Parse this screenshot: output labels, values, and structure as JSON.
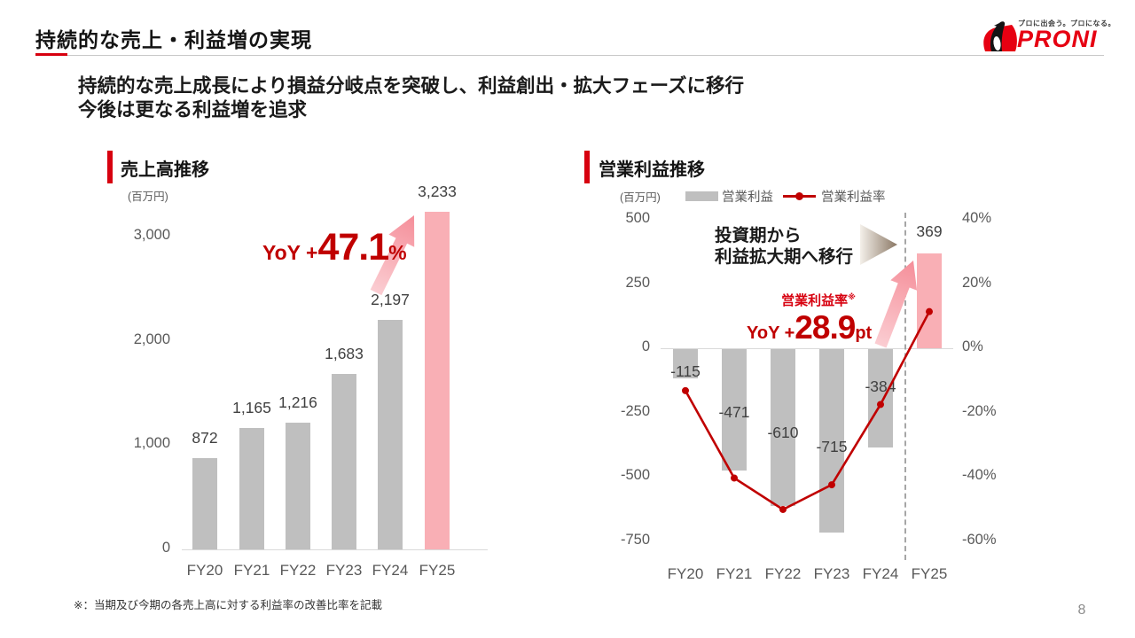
{
  "header": {
    "title": "持続的な売上・利益増の実現",
    "logo": {
      "tagline": "プロに出会う。プロになる。",
      "brand": "PRONI"
    }
  },
  "subtitle": {
    "line1": "持続的な売上成長により損益分岐点を突破し、利益創出・拡大フェーズに移行",
    "line2": "今後は更なる利益増を追求"
  },
  "colors": {
    "accent_red": "#d7000f",
    "dark_red": "#c00000",
    "logo_red": "#e60012",
    "bar_gray": "#bfbfbf",
    "bar_pink": "#f9afb5",
    "axis_line": "#d9d9d9",
    "dashed_line": "#a6a6a6",
    "tick_text": "#595959",
    "value_text": "#404040"
  },
  "chart_data": [
    {
      "id": "revenue",
      "type": "bar",
      "title": "売上高推移",
      "unit_label": "(百万円)",
      "categories": [
        "FY20",
        "FY21",
        "FY22",
        "FY23",
        "FY24",
        "FY25"
      ],
      "values": [
        872,
        1165,
        1216,
        1683,
        2197,
        3233
      ],
      "value_labels": [
        "872",
        "1,165",
        "1,216",
        "1,683",
        "2,197",
        "3,233"
      ],
      "ylim": [
        0,
        3400
      ],
      "yticks": [
        {
          "value": 0,
          "label": "0"
        },
        {
          "value": 1000,
          "label": "1,000"
        },
        {
          "value": 2000,
          "label": "2,000"
        },
        {
          "value": 3000,
          "label": "3,000"
        }
      ],
      "grid": false,
      "highlight_index": 5,
      "annotation": {
        "prefix": "YoY +",
        "value": "47.1",
        "suffix": "%"
      }
    },
    {
      "id": "operating-profit",
      "type": "bar+line",
      "title": "営業利益推移",
      "unit_label": "(百万円)",
      "categories": [
        "FY20",
        "FY21",
        "FY22",
        "FY23",
        "FY24",
        "FY25"
      ],
      "series": [
        {
          "name": "営業利益",
          "type": "bar",
          "values": [
            -115,
            -471,
            -610,
            -715,
            -384,
            369
          ],
          "value_labels": [
            "-115",
            "-471",
            "-610",
            "-715",
            "-384",
            "369"
          ]
        },
        {
          "name": "営業利益率",
          "type": "line",
          "values_pct": [
            -13.2,
            -40.4,
            -50.2,
            -42.5,
            -17.5,
            11.4
          ]
        }
      ],
      "left_axis": {
        "ylim": [
          -750,
          500
        ],
        "ticks": [
          {
            "value": 500,
            "label": "500"
          },
          {
            "value": 250,
            "label": "250"
          },
          {
            "value": 0,
            "label": "0"
          },
          {
            "value": -250,
            "label": "-250"
          },
          {
            "value": -500,
            "label": "-500"
          },
          {
            "value": -750,
            "label": "-750"
          }
        ]
      },
      "right_axis": {
        "ylim": [
          -60,
          40
        ],
        "ticks": [
          {
            "value": 40,
            "label": "40%"
          },
          {
            "value": 20,
            "label": "20%"
          },
          {
            "value": 0,
            "label": "0%"
          },
          {
            "value": -20,
            "label": "-20%"
          },
          {
            "value": -40,
            "label": "-40%"
          },
          {
            "value": -60,
            "label": "-60%"
          }
        ]
      },
      "highlight_index": 5,
      "annotations": {
        "phase_line1": "投資期から",
        "phase_line2": "利益拡大期へ移行",
        "rate_label": "営業利益率",
        "rate_ref_mark": "※",
        "yoy_prefix": "YoY +",
        "yoy_value": "28.9",
        "yoy_suffix": "pt"
      }
    }
  ],
  "footer": {
    "note": "※：当期及び今期の各売上高に対する利益率の改善比率を記載",
    "page_number": "8"
  }
}
